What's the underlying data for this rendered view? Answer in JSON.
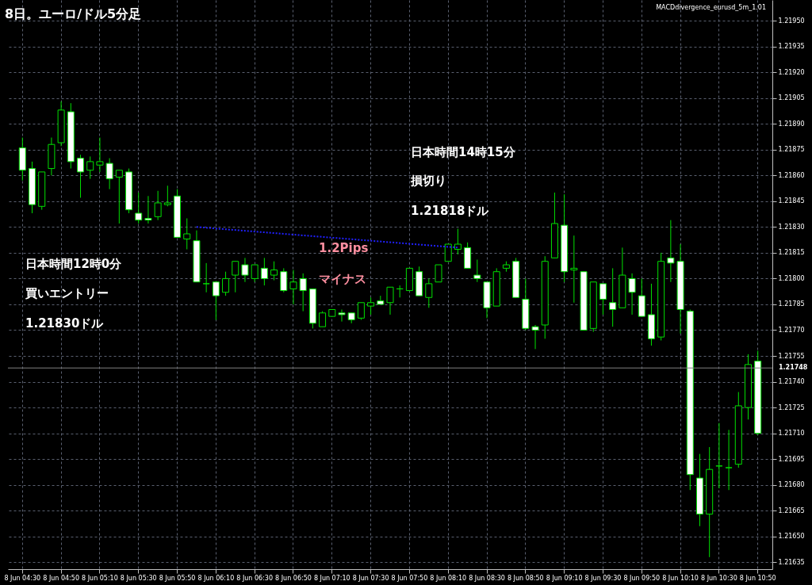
{
  "chart_data": {
    "type": "candlestick",
    "title": "8日。ユーロ/ドル5分足",
    "categories": [
      "8 Jun 04:30",
      null,
      null,
      null,
      "8 Jun 04:50",
      null,
      null,
      null,
      "8 Jun 05:10",
      null,
      null,
      null,
      "8 Jun 05:30",
      null,
      null,
      null,
      "8 Jun 05:50",
      null,
      null,
      null,
      "8 Jun 06:10",
      null,
      null,
      null,
      "8 Jun 06:30",
      null,
      null,
      null,
      "8 Jun 06:50",
      null,
      null,
      null,
      "8 Jun 07:10",
      null,
      null,
      null,
      "8 Jun 07:30",
      null,
      null,
      null,
      "8 Jun 07:50",
      null,
      null,
      null,
      "8 Jun 08:10",
      null,
      null,
      null,
      "8 Jun 08:30",
      null,
      null,
      null,
      "8 Jun 08:50",
      null,
      null,
      null,
      "8 Jun 09:10",
      null,
      null,
      null,
      "8 Jun 09:30",
      null,
      null,
      null,
      "8 Jun 09:50",
      null,
      null,
      null,
      "8 Jun 10:10",
      null,
      null,
      null,
      "8 Jun 10:30",
      null,
      null,
      null,
      "8 Jun 10:50"
    ],
    "ohlc": [
      [
        1.21876,
        1.21882,
        1.21857,
        1.21863
      ],
      [
        1.21864,
        1.21868,
        1.21838,
        1.21843
      ],
      [
        1.21842,
        1.21862,
        1.2184,
        1.21862
      ],
      [
        1.21864,
        1.21882,
        1.2186,
        1.21878
      ],
      [
        1.21879,
        1.21903,
        1.21877,
        1.21898
      ],
      [
        1.21897,
        1.21902,
        1.21864,
        1.21868
      ],
      [
        1.2187,
        1.21872,
        1.21847,
        1.21862
      ],
      [
        1.21863,
        1.21871,
        1.21858,
        1.21868
      ],
      [
        1.21866,
        1.21882,
        1.21862,
        1.21868
      ],
      [
        1.21867,
        1.2187,
        1.21852,
        1.21858
      ],
      [
        1.21859,
        1.21863,
        1.21832,
        1.21863
      ],
      [
        1.21862,
        1.21864,
        1.21838,
        1.2184
      ],
      [
        1.21838,
        1.2185,
        1.21832,
        1.21834
      ],
      [
        1.21835,
        1.21848,
        1.21832,
        1.21834
      ],
      [
        1.21836,
        1.21851,
        1.21834,
        1.21844
      ],
      [
        1.21843,
        1.21854,
        1.21842,
        1.21844
      ],
      [
        1.21848,
        1.21852,
        1.21824,
        1.21824
      ],
      [
        1.21823,
        1.21835,
        1.21817,
        1.21826
      ],
      [
        1.21822,
        1.21828,
        1.21798,
        1.21798
      ],
      [
        1.21797,
        1.21809,
        1.21792,
        1.21797
      ],
      [
        1.21798,
        1.21798,
        1.21776,
        1.2179
      ],
      [
        1.21792,
        1.21804,
        1.2179,
        1.218
      ],
      [
        1.21802,
        1.2181,
        1.21792,
        1.2181
      ],
      [
        1.21808,
        1.21812,
        1.21798,
        1.21802
      ],
      [
        1.218,
        1.21808,
        1.21798,
        1.21808
      ],
      [
        1.21806,
        1.21812,
        1.21796,
        1.218
      ],
      [
        1.21802,
        1.2181,
        1.21799,
        1.21805
      ],
      [
        1.21804,
        1.21806,
        1.21792,
        1.21793
      ],
      [
        1.21794,
        1.21805,
        1.21785,
        1.21798
      ],
      [
        1.218,
        1.21803,
        1.21781,
        1.21793
      ],
      [
        1.21794,
        1.21794,
        1.21771,
        1.21774
      ],
      [
        1.21772,
        1.21781,
        1.21772,
        1.2178
      ],
      [
        1.21778,
        1.21782,
        1.21778,
        1.21782
      ],
      [
        1.2178,
        1.21782,
        1.21775,
        1.21779
      ],
      [
        1.2178,
        1.2178,
        1.21774,
        1.21776
      ],
      [
        1.21777,
        1.21786,
        1.21776,
        1.21786
      ],
      [
        1.21784,
        1.21789,
        1.21779,
        1.21786
      ],
      [
        1.21787,
        1.2179,
        1.21785,
        1.21785
      ],
      [
        1.21786,
        1.21795,
        1.21779,
        1.21795
      ],
      [
        1.21794,
        1.21796,
        1.21789,
        1.21794
      ],
      [
        1.21793,
        1.21806,
        1.21793,
        1.21806
      ],
      [
        1.21804,
        1.21807,
        1.2179,
        1.2179
      ],
      [
        1.21789,
        1.218,
        1.21783,
        1.21797
      ],
      [
        1.21798,
        1.21808,
        1.21798,
        1.21808
      ],
      [
        1.2181,
        1.2182,
        1.2181,
        1.2182
      ],
      [
        1.21817,
        1.21829,
        1.21814,
        1.2182
      ],
      [
        1.21818,
        1.21821,
        1.21806,
        1.21806
      ],
      [
        1.21802,
        1.21811,
        1.21798,
        1.218
      ],
      [
        1.21798,
        1.21798,
        1.21777,
        1.21783
      ],
      [
        1.21784,
        1.21806,
        1.21784,
        1.21804
      ],
      [
        1.21806,
        1.2181,
        1.21804,
        1.21808
      ],
      [
        1.2181,
        1.21812,
        1.21789,
        1.21789
      ],
      [
        1.21788,
        1.218,
        1.2177,
        1.21771
      ],
      [
        1.21772,
        1.21773,
        1.21759,
        1.2177
      ],
      [
        1.21773,
        1.21813,
        1.21765,
        1.2181
      ],
      [
        1.21812,
        1.2185,
        1.21812,
        1.21832
      ],
      [
        1.21831,
        1.21849,
        1.21798,
        1.21804
      ],
      [
        1.21805,
        1.21825,
        1.21786,
        1.21806
      ],
      [
        1.21804,
        1.21804,
        1.2177,
        1.2177
      ],
      [
        1.21771,
        1.21798,
        1.21769,
        1.21798
      ],
      [
        1.21797,
        1.21797,
        1.21779,
        1.21788
      ],
      [
        1.21786,
        1.21806,
        1.21772,
        1.21782
      ],
      [
        1.21783,
        1.21818,
        1.21783,
        1.21802
      ],
      [
        1.218,
        1.21803,
        1.21779,
        1.21792
      ],
      [
        1.2179,
        1.218,
        1.21778,
        1.21778
      ],
      [
        1.21779,
        1.21797,
        1.21761,
        1.21765
      ],
      [
        1.21766,
        1.21815,
        1.21764,
        1.2181
      ],
      [
        1.21812,
        1.21834,
        1.21798,
        1.21809
      ],
      [
        1.2181,
        1.2182,
        1.21768,
        1.21782
      ],
      [
        1.21781,
        1.21782,
        1.21677,
        1.21686
      ],
      [
        1.21684,
        1.21698,
        1.21656,
        1.21663
      ],
      [
        1.21663,
        1.21702,
        1.21638,
        1.21689
      ],
      [
        1.21691,
        1.21716,
        1.21678,
        1.21691
      ],
      [
        1.2169,
        1.21712,
        1.21677,
        1.2169
      ],
      [
        1.21692,
        1.21734,
        1.2169,
        1.21726
      ],
      [
        1.21725,
        1.21756,
        1.21718,
        1.2175
      ],
      [
        1.21752,
        1.21758,
        1.21709,
        1.2171
      ]
    ],
    "color": "#00e000",
    "colors": [
      "#ffffff",
      "#ffffff",
      "#000000",
      "#000000",
      "#000000",
      "#ffffff",
      "#ffffff",
      "#000000",
      "#000000",
      "#ffffff",
      "#000000",
      "#ffffff",
      "#ffffff",
      "#ffffff",
      "#000000",
      "#000000",
      "#ffffff",
      "#000000",
      "#ffffff",
      "#00e000",
      "#ffffff",
      "#000000",
      "#000000",
      "#ffffff",
      "#000000",
      "#ffffff",
      "#000000",
      "#ffffff",
      "#000000",
      "#ffffff",
      "#ffffff",
      "#000000",
      "#000000",
      "#ffffff",
      "#ffffff",
      "#000000",
      "#000000",
      "#ffffff",
      "#000000",
      "#00e000",
      "#000000",
      "#ffffff",
      "#000000",
      "#000000",
      "#000000",
      "#000000",
      "#ffffff",
      "#ffffff",
      "#ffffff",
      "#000000",
      "#000000",
      "#ffffff",
      "#ffffff",
      "#ffffff",
      "#000000",
      "#000000",
      "#ffffff",
      "#000000",
      "#ffffff",
      "#000000",
      "#ffffff",
      "#ffffff",
      "#000000",
      "#ffffff",
      "#ffffff",
      "#ffffff",
      "#000000",
      "#ffffff",
      "#ffffff",
      "#ffffff",
      "#ffffff",
      "#000000",
      "#00e000",
      "#00e000",
      "#000000",
      "#000000",
      "#ffffff"
    ],
    "series": [
      {
        "type": "line",
        "color": "#2020ff",
        "line_style": "dotted",
        "values": [
          null,
          null,
          null,
          null,
          null,
          null,
          null,
          null,
          null,
          null,
          null,
          null,
          null,
          null,
          null,
          null,
          null,
          null,
          1.2183,
          null,
          null,
          null,
          null,
          null,
          null,
          null,
          null,
          null,
          null,
          null,
          null,
          null,
          null,
          null,
          null,
          null,
          null,
          null,
          null,
          null,
          null,
          null,
          null,
          null,
          null,
          1.21818,
          null,
          null,
          null,
          null,
          null,
          null,
          null,
          null,
          null,
          null,
          null,
          null,
          null,
          null,
          null,
          null,
          null,
          null,
          null,
          null,
          null,
          null,
          null,
          null,
          null,
          null,
          null,
          null,
          null,
          null,
          null
        ]
      }
    ],
    "ylim": [
      1.21631,
      1.21962
    ],
    "yticks": [
      {
        "value": 1.2195,
        "label": "1.21950"
      },
      {
        "value": 1.21935,
        "label": "1.21935"
      },
      {
        "value": 1.2192,
        "label": "1.21920"
      },
      {
        "value": 1.21905,
        "label": "1.21905"
      },
      {
        "value": 1.2189,
        "label": "1.21890"
      },
      {
        "value": 1.21875,
        "label": "1.21875"
      },
      {
        "value": 1.2186,
        "label": "1.21860"
      },
      {
        "value": 1.21845,
        "label": "1.21845"
      },
      {
        "value": 1.2183,
        "label": "1.21830"
      },
      {
        "value": 1.21815,
        "label": "1.21815"
      },
      {
        "value": 1.218,
        "label": "1.21800"
      },
      {
        "value": 1.21785,
        "label": "1.21785"
      },
      {
        "value": 1.2177,
        "label": "1.21770"
      },
      {
        "value": 1.21755,
        "label": "1.21755"
      },
      {
        "value": 1.2174,
        "label": "1.21740"
      },
      {
        "value": 1.21725,
        "label": "1.21725"
      },
      {
        "value": 1.2171,
        "label": "1.21710"
      },
      {
        "value": 1.21695,
        "label": "1.21695"
      },
      {
        "value": 1.2168,
        "label": "1.21680"
      },
      {
        "value": 1.21665,
        "label": "1.21665"
      },
      {
        "value": 1.2165,
        "label": "1.21650"
      },
      {
        "value": 1.21635,
        "label": "1.21635"
      }
    ],
    "ref_lines": [
      {
        "axis": "y",
        "value": 1.21748,
        "label": "1.21748",
        "color": "#808080"
      }
    ],
    "grid": true,
    "annotations": [
      "MACDdivergence_eurusd_5m_1.01",
      "日本時間12時0分",
      "買いエントリー",
      "1.21830ドル",
      "日本時間14時15分",
      "損切り",
      "1.21818ドル",
      "1.2Pips",
      "マイナス"
    ]
  }
}
